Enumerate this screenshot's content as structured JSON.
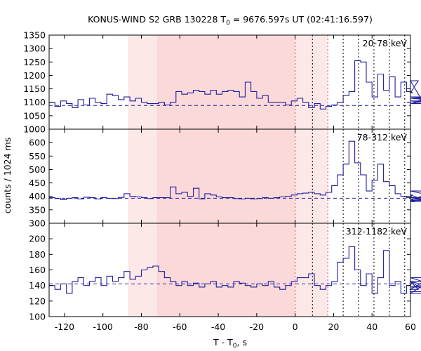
{
  "chart_data": [
    {
      "type": "line",
      "title": "KONUS-WIND S2 GRB 130228 T0 = 9676.597s UT (02:41:16.597)",
      "title_prefix": "KONUS-WIND S2 GRB 130228 T",
      "title_sub": "0",
      "title_suffix": " = 9676.597s UT (02:41:16.597)",
      "xlabel": "T - T0, s",
      "xlabel_prefix": "T - T",
      "xlabel_sub": "0",
      "xlabel_suffix": ", s",
      "ylabel": "counts / 1024 ms",
      "xlim": [
        -128,
        60
      ],
      "xticks": [
        -120,
        -100,
        -80,
        -60,
        -40,
        -20,
        0,
        20,
        40,
        60
      ],
      "shaded_regions": [
        {
          "from": -87,
          "to": -72,
          "color": "#fde8e8"
        },
        {
          "from": -72,
          "to": 0,
          "color": "#fbd9d9"
        },
        {
          "from": 0,
          "to": 17,
          "color": "#fde8e8"
        }
      ],
      "markers_red": [
        0,
        17
      ],
      "markers_black": [
        9,
        25,
        33,
        41,
        49,
        57
      ],
      "series_color": "#1e1e9f",
      "background_color": "#d04060",
      "panels": [
        {
          "label": "20-78 keV",
          "ylim": [
            1000,
            1350
          ],
          "yticks": [
            1000,
            1050,
            1100,
            1150,
            1200,
            1250,
            1300,
            1350
          ],
          "background": 1088,
          "series": [
            {
              "name": "20-78 keV",
              "x_start": -128,
              "bin": 3,
              "values": [
                1100,
                1085,
                1105,
                1095,
                1080,
                1110,
                1090,
                1115,
                1100,
                1095,
                1130,
                1125,
                1110,
                1120,
                1105,
                1115,
                1100,
                1095,
                1095,
                1100,
                1090,
                1100,
                1140,
                1130,
                1135,
                1145,
                1140,
                1130,
                1145,
                1130,
                1140,
                1145,
                1140,
                1120,
                1175,
                1140,
                1115,
                1125,
                1100,
                1100,
                1100,
                1090,
                1105,
                1115,
                1100,
                1080,
                1095,
                1075,
                1085,
                1090,
                1100,
                1125,
                1140,
                1255,
                1250,
                1175,
                1120,
                1205,
                1145,
                1195,
                1120,
                1175,
                1140,
                1135,
                1180,
                1095,
                1120,
                1115,
                1105,
                1095,
                1120
              ]
            }
          ]
        },
        {
          "label": "78-312 keV",
          "ylim": [
            300,
            650
          ],
          "yticks": [
            300,
            350,
            400,
            450,
            500,
            550,
            600
          ],
          "background": 393,
          "series": [
            {
              "name": "78-312 keV",
              "x_start": -128,
              "bin": 3,
              "values": [
                395,
                392,
                388,
                393,
                395,
                390,
                397,
                395,
                390,
                395,
                393,
                392,
                396,
                410,
                400,
                398,
                395,
                392,
                395,
                395,
                395,
                435,
                410,
                415,
                400,
                430,
                390,
                410,
                405,
                398,
                395,
                395,
                392,
                390,
                393,
                390,
                392,
                395,
                393,
                395,
                398,
                400,
                405,
                410,
                412,
                415,
                410,
                405,
                415,
                440,
                480,
                520,
                605,
                525,
                480,
                420,
                460,
                520,
                455,
                440,
                410,
                400,
                395,
                405,
                395,
                390,
                385,
                420,
                395,
                380,
                420
              ]
            }
          ]
        },
        {
          "label": "312-1182 keV",
          "ylim": [
            100,
            220
          ],
          "yticks": [
            100,
            120,
            140,
            160,
            180,
            200
          ],
          "background": 142,
          "series": [
            {
              "name": "312-1182 keV",
              "x_start": -128,
              "bin": 3,
              "values": [
                140,
                135,
                142,
                130,
                145,
                150,
                140,
                145,
                150,
                140,
                152,
                145,
                150,
                158,
                148,
                152,
                160,
                163,
                165,
                158,
                150,
                145,
                140,
                145,
                140,
                143,
                138,
                142,
                145,
                138,
                140,
                138,
                145,
                143,
                140,
                138,
                142,
                140,
                145,
                138,
                135,
                140,
                145,
                150,
                150,
                155,
                140,
                135,
                140,
                145,
                170,
                175,
                190,
                160,
                140,
                155,
                130,
                150,
                185,
                140,
                145,
                130,
                140,
                145,
                135,
                145,
                130,
                150,
                138,
                145,
                132
              ]
            }
          ]
        }
      ]
    }
  ]
}
